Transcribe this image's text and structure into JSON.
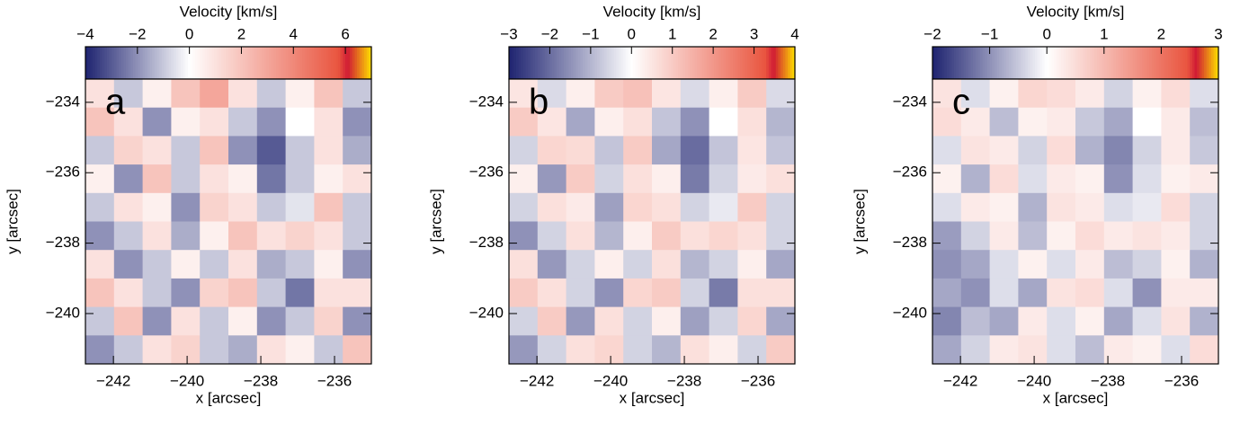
{
  "chart_data": [
    {
      "type": "heatmap",
      "panel_label": "a",
      "colorbar_label": "Velocity [km/s]",
      "xlabel": "x [arcsec]",
      "ylabel": "y [arcsec]",
      "clim": [
        -4,
        7
      ],
      "cticks": [
        {
          "value": -4,
          "label": "−4"
        },
        {
          "value": -2,
          "label": "−2"
        },
        0,
        2,
        4,
        6
      ],
      "xlim": [
        -242.76,
        -235
      ],
      "xticks": [
        {
          "value": -242,
          "label": "−242"
        },
        {
          "value": -240,
          "label": "−240"
        },
        {
          "value": -238,
          "label": "−238"
        },
        {
          "value": -236,
          "label": "−236"
        }
      ],
      "ylim": [
        -241.43,
        -233.34
      ],
      "yticks": [
        {
          "value": -234,
          "label": "−234"
        },
        {
          "value": -236,
          "label": "−236"
        },
        {
          "value": -238,
          "label": "−238"
        },
        {
          "value": -240,
          "label": "−240"
        }
      ],
      "colors": [
        "#1e2370",
        "#ffffff",
        "#e9553f",
        "#d01a34",
        "#ffe000"
      ],
      "z": [
        [
          1,
          -1,
          0.5,
          2,
          3,
          1,
          -1,
          0.5,
          2,
          -1
        ],
        [
          2,
          1,
          -2,
          0.5,
          1,
          -1,
          -2,
          0,
          1,
          -2
        ],
        [
          -1,
          1.5,
          1,
          -1,
          2,
          -2,
          -3,
          -1,
          1,
          -1.5
        ],
        [
          0.5,
          -2,
          2,
          -1,
          1,
          0.5,
          -2.5,
          -1,
          0.5,
          1
        ],
        [
          -1,
          1,
          0.5,
          -2,
          1.5,
          1,
          -1,
          -0.5,
          2,
          -1
        ],
        [
          -2,
          -1,
          1,
          -1.5,
          0.5,
          2,
          1,
          1.5,
          1,
          -1
        ],
        [
          1,
          -2,
          -1,
          0.5,
          -1,
          1,
          -1.5,
          -1,
          0.5,
          -2
        ],
        [
          2,
          1,
          -1,
          -2,
          1.5,
          2,
          -1,
          -2.5,
          1,
          1
        ],
        [
          -1,
          2,
          -2,
          1,
          -1,
          0.5,
          -2,
          -1,
          1.5,
          -2
        ],
        [
          -2,
          -1,
          1,
          1.5,
          -1,
          -1.5,
          1,
          0.5,
          -1,
          2
        ]
      ]
    },
    {
      "type": "heatmap",
      "panel_label": "b",
      "colorbar_label": "Velocity [km/s]",
      "xlabel": "x [arcsec]",
      "ylabel": "y [arcsec]",
      "clim": [
        -3,
        4
      ],
      "cticks": [
        {
          "value": -3,
          "label": "−3"
        },
        {
          "value": -2,
          "label": "−2"
        },
        {
          "value": -1,
          "label": "−1"
        },
        0,
        1,
        2,
        3,
        4
      ],
      "xlim": [
        -242.76,
        -235
      ],
      "xticks": [
        {
          "value": -242,
          "label": "−242"
        },
        {
          "value": -240,
          "label": "−240"
        },
        {
          "value": -238,
          "label": "−238"
        },
        {
          "value": -236,
          "label": "−236"
        }
      ],
      "ylim": [
        -241.43,
        -233.34
      ],
      "yticks": [
        {
          "value": -234,
          "label": "−234"
        },
        {
          "value": -236,
          "label": "−236"
        },
        {
          "value": -238,
          "label": "−238"
        },
        {
          "value": -240,
          "label": "−240"
        }
      ],
      "colors": [
        "#1e2370",
        "#ffffff",
        "#e9553f",
        "#d01a34",
        "#ffe000"
      ],
      "z": [
        [
          0.5,
          -0.5,
          0.3,
          1,
          1.2,
          0.5,
          -0.5,
          0.3,
          1,
          -0.5
        ],
        [
          1,
          0.5,
          -1.2,
          0.3,
          0.6,
          -0.8,
          -1.5,
          0,
          0.6,
          -1
        ],
        [
          -0.6,
          0.8,
          0.7,
          -0.8,
          1,
          -1.2,
          -2,
          -0.8,
          0.5,
          -0.8
        ],
        [
          0.3,
          -1.4,
          1,
          -0.6,
          0.6,
          0.3,
          -1.8,
          -0.6,
          0.4,
          0.6
        ],
        [
          -0.6,
          0.6,
          0.4,
          -1.3,
          0.8,
          0.6,
          -0.6,
          -0.3,
          1,
          -0.6
        ],
        [
          -1.5,
          -0.6,
          0.6,
          -1,
          0.3,
          1,
          0.6,
          0.8,
          0.6,
          -0.6
        ],
        [
          0.6,
          -1.4,
          -0.6,
          0.3,
          -0.6,
          0.6,
          -1,
          -0.6,
          0.3,
          -1.2
        ],
        [
          1,
          0.6,
          -0.6,
          -1.5,
          0.8,
          1,
          -0.6,
          -1.8,
          0.6,
          0.6
        ],
        [
          -0.6,
          1,
          -1.4,
          0.6,
          -0.6,
          0.3,
          -1.3,
          -0.6,
          0.8,
          -1.2
        ],
        [
          -1.4,
          -0.6,
          0.6,
          0.8,
          -0.6,
          -1,
          0.6,
          0.3,
          -0.6,
          1
        ]
      ]
    },
    {
      "type": "heatmap",
      "panel_label": "c",
      "colorbar_label": "Velocity [km/s]",
      "xlabel": "x [arcsec]",
      "ylabel": "y [arcsec]",
      "clim": [
        -2,
        3
      ],
      "cticks": [
        {
          "value": -2,
          "label": "−2"
        },
        {
          "value": -1,
          "label": "−1"
        },
        0,
        1,
        2,
        3
      ],
      "xlim": [
        -242.76,
        -235
      ],
      "xticks": [
        {
          "value": -242,
          "label": "−242"
        },
        {
          "value": -240,
          "label": "−240"
        },
        {
          "value": -238,
          "label": "−238"
        },
        {
          "value": -236,
          "label": "−236"
        }
      ],
      "ylim": [
        -241.43,
        -233.34
      ],
      "yticks": [
        {
          "value": -234,
          "label": "−234"
        },
        {
          "value": -236,
          "label": "−236"
        },
        {
          "value": -238,
          "label": "−238"
        },
        {
          "value": -240,
          "label": "−240"
        }
      ],
      "colors": [
        "#1e2370",
        "#ffffff",
        "#e9553f",
        "#d01a34",
        "#ffe000"
      ],
      "z": [
        [
          0.4,
          -0.3,
          0.2,
          0.6,
          0.5,
          0.3,
          -0.4,
          0.2,
          0.5,
          -0.3
        ],
        [
          0.5,
          0.3,
          -0.6,
          0.2,
          0.3,
          -0.5,
          -0.8,
          0,
          0.3,
          -0.6
        ],
        [
          -0.3,
          0.4,
          0.3,
          -0.4,
          0.5,
          -0.7,
          -1.1,
          -0.4,
          0.3,
          -0.5
        ],
        [
          0.2,
          -0.7,
          0.5,
          -0.3,
          0.3,
          0.2,
          -1,
          -0.3,
          0.2,
          0.3
        ],
        [
          -0.3,
          0.3,
          0.2,
          -0.7,
          0.4,
          0.3,
          -0.3,
          -0.2,
          0.5,
          -0.4
        ],
        [
          -0.9,
          -0.4,
          0.3,
          -0.6,
          0.2,
          0.5,
          0.3,
          0.4,
          0.3,
          -0.4
        ],
        [
          -1,
          -0.8,
          -0.3,
          0.2,
          -0.3,
          0.3,
          -0.6,
          -0.4,
          0.2,
          -0.7
        ],
        [
          -0.8,
          -1,
          -0.3,
          -0.8,
          0.4,
          0.5,
          -0.3,
          -1,
          0.3,
          0.3
        ],
        [
          -1.1,
          -0.6,
          -0.8,
          0.3,
          -0.3,
          0.2,
          -0.8,
          -0.3,
          0.4,
          -0.7
        ],
        [
          -0.8,
          -0.4,
          0.3,
          0.4,
          -0.3,
          -0.6,
          0.3,
          0.2,
          -0.3,
          0.5
        ]
      ]
    }
  ]
}
